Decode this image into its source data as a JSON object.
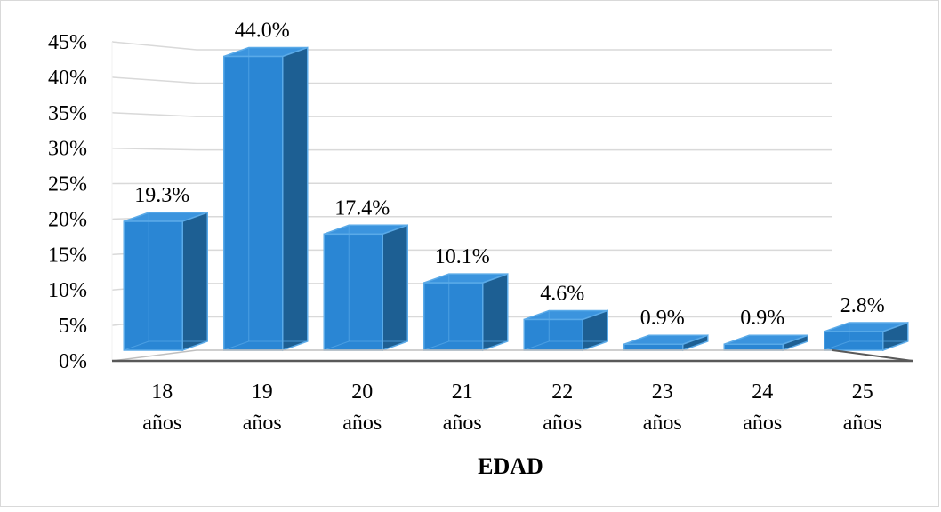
{
  "chart_data": {
    "type": "bar",
    "style": "3d-column",
    "categories": [
      [
        "18",
        "años"
      ],
      [
        "19",
        "años"
      ],
      [
        "20",
        "años"
      ],
      [
        "21",
        "años"
      ],
      [
        "22",
        "años"
      ],
      [
        "23",
        "años"
      ],
      [
        "24",
        "años"
      ],
      [
        "25",
        "años"
      ]
    ],
    "values": [
      19.3,
      44.0,
      17.4,
      10.1,
      4.6,
      0.9,
      0.9,
      2.8
    ],
    "data_labels": [
      "19.3%",
      "44.0%",
      "17.4%",
      "10.1%",
      "4.6%",
      "0.9%",
      "0.9%",
      "2.8%"
    ],
    "y_ticks": [
      "0%",
      "5%",
      "10%",
      "15%",
      "20%",
      "25%",
      "30%",
      "35%",
      "40%",
      "45%"
    ],
    "ylim": [
      0,
      45
    ],
    "xlabel": "EDAD",
    "ylabel": "",
    "title": "",
    "grid": true,
    "legend": "none",
    "colors": {
      "bar_front": "#2a86d4",
      "bar_side": "#1d5f93",
      "bar_top": "#3b94de",
      "bar_edge": "#5aaae8",
      "grid": "#d9d9d9",
      "axis": "#595959"
    }
  }
}
